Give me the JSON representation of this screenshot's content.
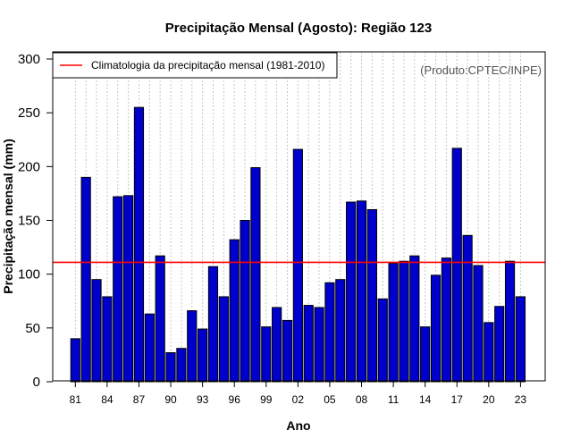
{
  "chart_data": {
    "type": "bar",
    "title": "Precipitação Mensal (Agosto): Região 123",
    "xlabel": "Ano",
    "ylabel": "Precipitação mensal (mm)",
    "ylim": [
      0,
      300
    ],
    "yticks": [
      0,
      50,
      100,
      150,
      200,
      250,
      300
    ],
    "xtick_labels": [
      "81",
      "84",
      "87",
      "90",
      "93",
      "96",
      "99",
      "02",
      "05",
      "08",
      "11",
      "14",
      "17",
      "20",
      "23"
    ],
    "categories": [
      "1981",
      "1982",
      "1983",
      "1984",
      "1985",
      "1986",
      "1987",
      "1988",
      "1989",
      "1990",
      "1991",
      "1992",
      "1993",
      "1994",
      "1995",
      "1996",
      "1997",
      "1998",
      "1999",
      "2000",
      "2001",
      "2002",
      "2003",
      "2004",
      "2005",
      "2006",
      "2007",
      "2008",
      "2009",
      "2010",
      "2011",
      "2012",
      "2013",
      "2014",
      "2015",
      "2016",
      "2017",
      "2018",
      "2019",
      "2020",
      "2021",
      "2022",
      "2023"
    ],
    "values": [
      40,
      190,
      95,
      79,
      172,
      173,
      255,
      63,
      117,
      27,
      31,
      66,
      49,
      107,
      79,
      132,
      150,
      199,
      51,
      69,
      57,
      216,
      71,
      69,
      92,
      95,
      167,
      168,
      160,
      77,
      110,
      112,
      117,
      51,
      99,
      115,
      217,
      136,
      108,
      55,
      70,
      112,
      79
    ],
    "climatology": 111,
    "legend": "Climatologia da precipitação mensal (1981-2010)",
    "legend_position": "top-left",
    "credit": "(Produto:CPTEC/INPE)",
    "grid": "vertical dotted",
    "colors": {
      "bar": "#0000cd",
      "climatology": "#ff0000",
      "grid": "#c8c8c8"
    }
  }
}
